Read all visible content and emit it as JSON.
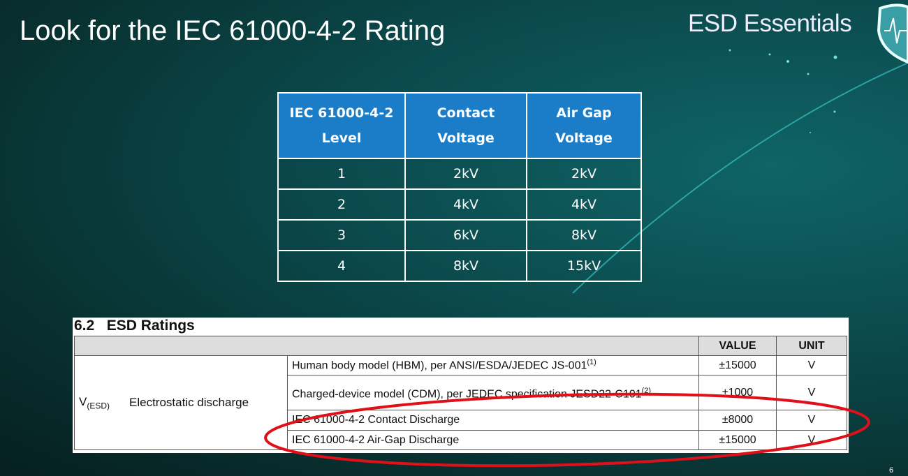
{
  "slide": {
    "title": "Look for the IEC 61000-4-2 Rating",
    "brand": "ESD Essentials",
    "page_number": "6",
    "accent_color": "#1b7cc8",
    "highlight_color": "#e0101a"
  },
  "iec_table": {
    "headers": [
      [
        "IEC 61000-4-2",
        "Level"
      ],
      [
        "Contact",
        "Voltage"
      ],
      [
        "Air Gap",
        "Voltage"
      ]
    ],
    "rows": [
      [
        "1",
        "2kV",
        "2kV"
      ],
      [
        "2",
        "4kV",
        "4kV"
      ],
      [
        "3",
        "6kV",
        "8kV"
      ],
      [
        "4",
        "8kV",
        "15kV"
      ]
    ]
  },
  "esd_ratings": {
    "title": "6.2   ESD Ratings",
    "headers": {
      "value": "VALUE",
      "unit": "UNIT"
    },
    "symbol": "V",
    "symbol_sub": "(ESD)",
    "parameter": "Electrostatic discharge",
    "rows": [
      {
        "condition": "Human body model (HBM), per ANSI/ESDA/JEDEC JS-001",
        "note": "(1)",
        "value": "±15000",
        "unit": "V"
      },
      {
        "condition": "Charged-device model (CDM), per JEDEC specification JESD22-C101",
        "note": "(2)",
        "value": "±1000",
        "unit": "V"
      },
      {
        "condition": "IEC 61000-4-2 Contact Discharge",
        "note": "",
        "value": "±8000",
        "unit": "V"
      },
      {
        "condition": "IEC 61000-4-2 Air-Gap Discharge",
        "note": "",
        "value": "±15000",
        "unit": "V"
      }
    ]
  }
}
